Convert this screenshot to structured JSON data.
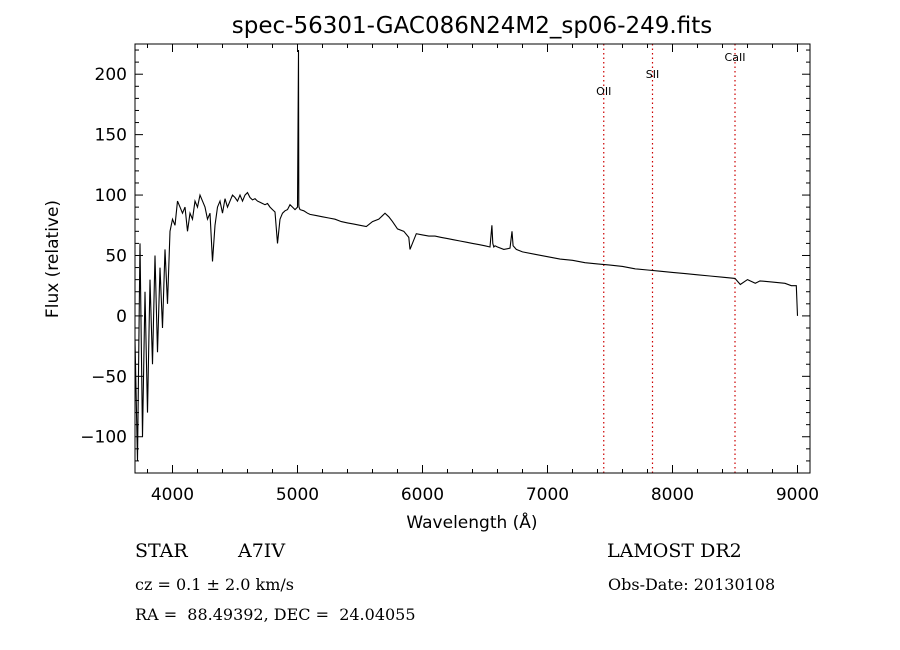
{
  "chart_data": {
    "type": "line",
    "title": "spec-56301-GAC086N24M2_sp06-249.fits",
    "xlabel": "Wavelength (Å)",
    "ylabel": "Flux (relative)",
    "xlim": [
      3700,
      9100
    ],
    "ylim": [
      -130,
      225
    ],
    "xticks": [
      4000,
      5000,
      6000,
      7000,
      8000,
      9000
    ],
    "yticks": [
      -100,
      -50,
      0,
      50,
      100,
      150,
      200
    ],
    "grid": false,
    "line_color": "#000000",
    "marker_color": "#cc0000",
    "series": [
      {
        "x": [
          3700,
          3720,
          3740,
          3760,
          3780,
          3800,
          3820,
          3840,
          3860,
          3880,
          3900,
          3920,
          3940,
          3960,
          3980,
          4000,
          4020,
          4040,
          4060,
          4080,
          4100,
          4120,
          4140,
          4160,
          4180,
          4200,
          4220,
          4240,
          4260,
          4280,
          4300,
          4320,
          4340,
          4360,
          4380,
          4400,
          4420,
          4440,
          4460,
          4480,
          4500,
          4520,
          4540,
          4560,
          4580,
          4600,
          4620,
          4640,
          4660,
          4680,
          4700,
          4720,
          4740,
          4760,
          4780,
          4800,
          4820,
          4840,
          4860,
          4880,
          4900,
          4920,
          4940,
          4960,
          4980,
          5000,
          5008,
          5010,
          5012,
          5020,
          5050,
          5080,
          5100,
          5150,
          5200,
          5250,
          5300,
          5350,
          5400,
          5450,
          5500,
          5550,
          5600,
          5650,
          5700,
          5730,
          5760,
          5800,
          5850,
          5890,
          5900,
          5950,
          6000,
          6050,
          6100,
          6150,
          6200,
          6250,
          6300,
          6350,
          6400,
          6450,
          6500,
          6540,
          6555,
          6562,
          6570,
          6580,
          6600,
          6650,
          6700,
          6716,
          6725,
          6750,
          6800,
          6900,
          7000,
          7100,
          7200,
          7300,
          7400,
          7500,
          7600,
          7700,
          7800,
          7900,
          8000,
          8100,
          8200,
          8300,
          8400,
          8500,
          8542,
          8600,
          8662,
          8700,
          8800,
          8900,
          8950,
          8990,
          9000
        ],
        "y": [
          -20,
          -120,
          60,
          -100,
          20,
          -80,
          30,
          -40,
          50,
          -30,
          40,
          -10,
          55,
          10,
          70,
          80,
          75,
          95,
          90,
          85,
          90,
          70,
          85,
          80,
          95,
          90,
          100,
          95,
          90,
          80,
          85,
          45,
          75,
          90,
          95,
          85,
          97,
          90,
          95,
          100,
          98,
          95,
          100,
          95,
          100,
          102,
          98,
          96,
          97,
          95,
          94,
          93,
          92,
          93,
          90,
          88,
          86,
          60,
          80,
          85,
          87,
          88,
          92,
          90,
          88,
          90,
          220,
          92,
          90,
          88,
          87,
          85,
          84,
          83,
          82,
          81,
          80,
          78,
          77,
          76,
          75,
          74,
          78,
          80,
          85,
          82,
          78,
          72,
          70,
          65,
          55,
          68,
          67,
          66,
          66,
          65,
          64,
          63,
          62,
          61,
          60,
          59,
          58,
          57,
          75,
          60,
          57,
          58,
          57,
          55,
          56,
          70,
          58,
          55,
          53,
          51,
          49,
          47,
          46,
          44,
          43,
          42,
          41,
          39,
          38,
          37,
          36,
          35,
          34,
          33,
          32,
          31,
          26,
          30,
          27,
          29,
          28,
          27,
          25,
          25,
          0
        ]
      }
    ],
    "line_markers": [
      {
        "label": "OII",
        "x": 7450
      },
      {
        "label": "SII",
        "x": 7840
      },
      {
        "label": "CaII",
        "x": 8500
      }
    ]
  },
  "info": {
    "object_class": "STAR",
    "subclass": "A7IV",
    "survey": "LAMOST DR2",
    "cz": "cz = 0.1 ± 2.0 km/s",
    "obs_date": "Obs-Date: 20130108",
    "coords": "RA =  88.49392, DEC =  24.04055"
  }
}
